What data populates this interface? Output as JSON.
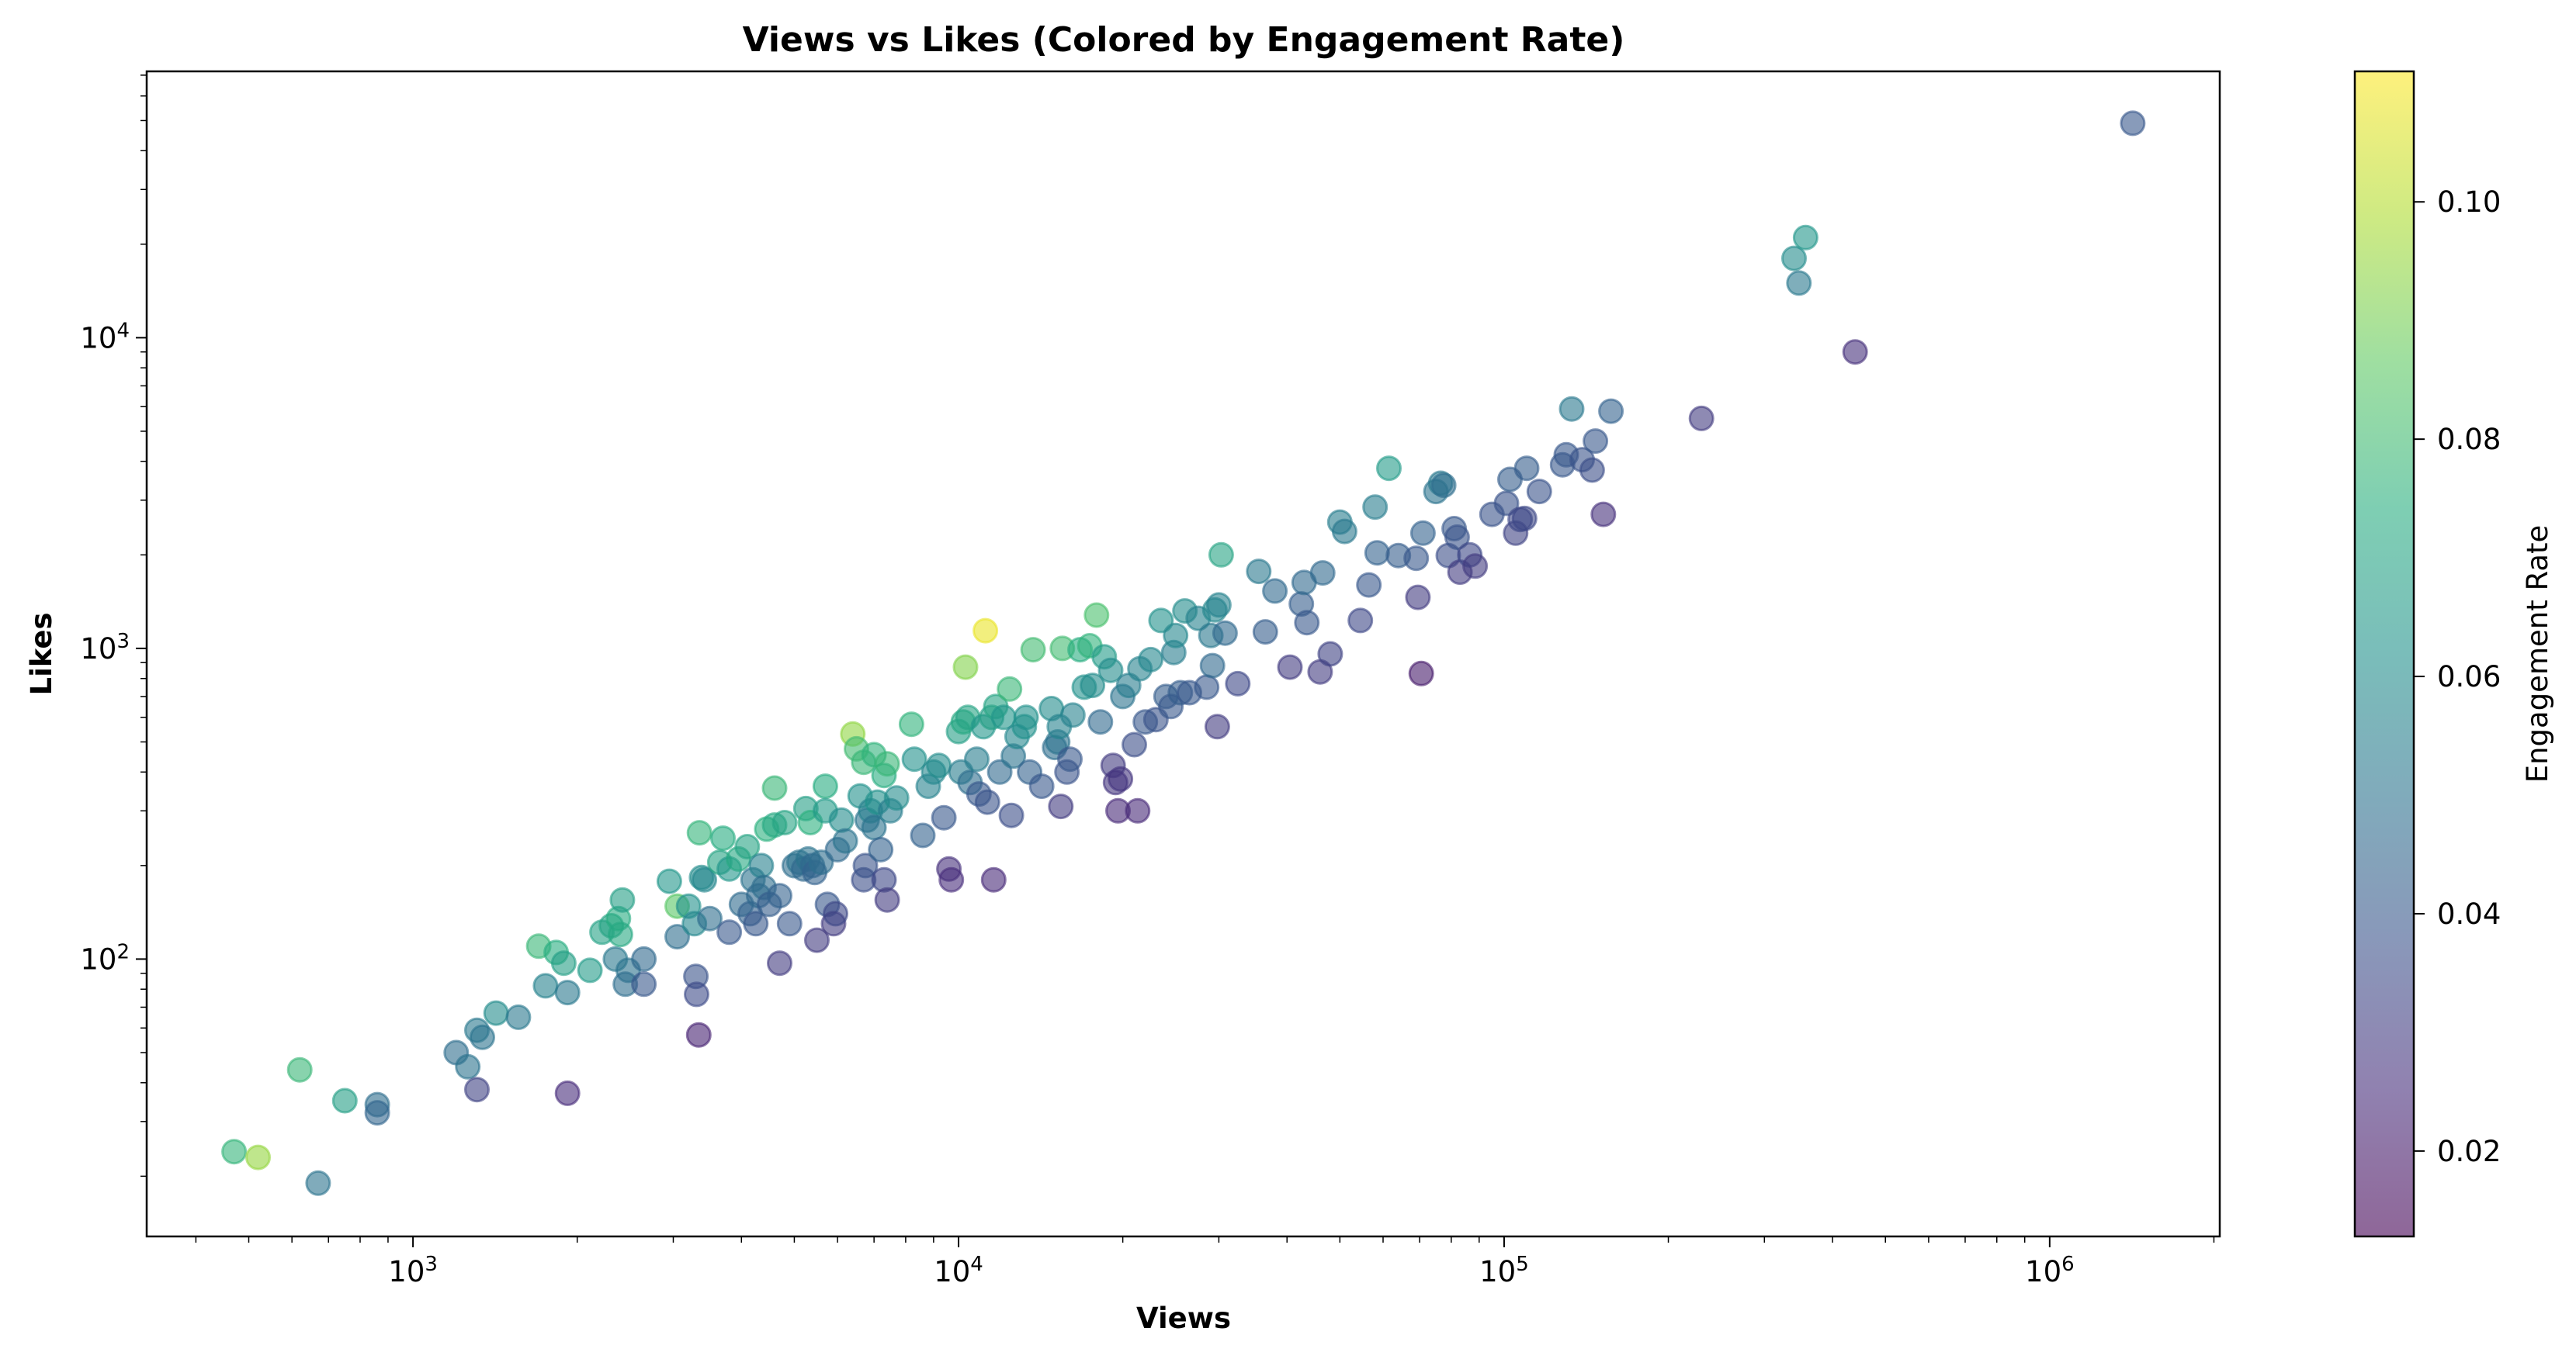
{
  "chart_data": {
    "type": "scatter",
    "title": "Views vs Likes (Colored by Engagement Rate)",
    "xlabel": "Views",
    "ylabel": "Likes",
    "xscale": "log",
    "yscale": "log",
    "xlim": [
      325,
      2050000
    ],
    "ylim": [
      12.8,
      72000
    ],
    "x_ticks": [
      {
        "value": 1000,
        "base": "10",
        "exp": "3"
      },
      {
        "value": 10000,
        "base": "10",
        "exp": "4"
      },
      {
        "value": 100000,
        "base": "10",
        "exp": "5"
      },
      {
        "value": 1000000,
        "base": "10",
        "exp": "6"
      }
    ],
    "y_ticks": [
      {
        "value": 100,
        "base": "10",
        "exp": "2"
      },
      {
        "value": 1000,
        "base": "10",
        "exp": "3"
      },
      {
        "value": 10000,
        "base": "10",
        "exp": "4"
      }
    ],
    "grid": false,
    "colorbar": {
      "label": "Engagement Rate",
      "colormap": "viridis",
      "range": [
        0.0128,
        0.111
      ],
      "ticks": [
        "0.02",
        "0.04",
        "0.06",
        "0.08",
        "0.10"
      ],
      "tick_values": [
        0.02,
        0.04,
        0.06,
        0.08,
        0.1
      ]
    },
    "marker_alpha": 0.6,
    "points": [
      {
        "x": 470,
        "y": 24,
        "c": 0.077
      },
      {
        "x": 520,
        "y": 23,
        "c": 0.095
      },
      {
        "x": 670,
        "y": 19,
        "c": 0.05
      },
      {
        "x": 620,
        "y": 44,
        "c": 0.078
      },
      {
        "x": 750,
        "y": 35,
        "c": 0.068
      },
      {
        "x": 860,
        "y": 34,
        "c": 0.048
      },
      {
        "x": 860,
        "y": 32,
        "c": 0.045
      },
      {
        "x": 1200,
        "y": 50,
        "c": 0.048
      },
      {
        "x": 1260,
        "y": 45,
        "c": 0.05
      },
      {
        "x": 1310,
        "y": 59,
        "c": 0.052
      },
      {
        "x": 1340,
        "y": 56,
        "c": 0.05
      },
      {
        "x": 1310,
        "y": 38,
        "c": 0.032
      },
      {
        "x": 1420,
        "y": 67,
        "c": 0.06
      },
      {
        "x": 1560,
        "y": 65,
        "c": 0.052
      },
      {
        "x": 1700,
        "y": 110,
        "c": 0.078
      },
      {
        "x": 1750,
        "y": 82,
        "c": 0.056
      },
      {
        "x": 1830,
        "y": 105,
        "c": 0.074
      },
      {
        "x": 1890,
        "y": 97,
        "c": 0.068
      },
      {
        "x": 1920,
        "y": 78,
        "c": 0.052
      },
      {
        "x": 1920,
        "y": 37,
        "c": 0.025
      },
      {
        "x": 2110,
        "y": 92,
        "c": 0.066
      },
      {
        "x": 2220,
        "y": 122,
        "c": 0.069
      },
      {
        "x": 2310,
        "y": 128,
        "c": 0.07
      },
      {
        "x": 2350,
        "y": 100,
        "c": 0.052
      },
      {
        "x": 2380,
        "y": 135,
        "c": 0.073
      },
      {
        "x": 2400,
        "y": 120,
        "c": 0.072
      },
      {
        "x": 2420,
        "y": 155,
        "c": 0.068
      },
      {
        "x": 2480,
        "y": 92,
        "c": 0.05
      },
      {
        "x": 2450,
        "y": 83,
        "c": 0.048
      },
      {
        "x": 2650,
        "y": 100,
        "c": 0.046
      },
      {
        "x": 2650,
        "y": 83,
        "c": 0.04
      },
      {
        "x": 2950,
        "y": 178,
        "c": 0.064
      },
      {
        "x": 3050,
        "y": 148,
        "c": 0.085
      },
      {
        "x": 3050,
        "y": 118,
        "c": 0.048
      },
      {
        "x": 3200,
        "y": 148,
        "c": 0.062
      },
      {
        "x": 3280,
        "y": 130,
        "c": 0.058
      },
      {
        "x": 3300,
        "y": 88,
        "c": 0.038
      },
      {
        "x": 3310,
        "y": 77,
        "c": 0.035
      },
      {
        "x": 3340,
        "y": 57,
        "c": 0.022
      },
      {
        "x": 3350,
        "y": 255,
        "c": 0.077
      },
      {
        "x": 3380,
        "y": 183,
        "c": 0.06
      },
      {
        "x": 3420,
        "y": 180,
        "c": 0.058
      },
      {
        "x": 3500,
        "y": 135,
        "c": 0.048
      },
      {
        "x": 3650,
        "y": 205,
        "c": 0.07
      },
      {
        "x": 3700,
        "y": 245,
        "c": 0.073
      },
      {
        "x": 3800,
        "y": 195,
        "c": 0.064
      },
      {
        "x": 3800,
        "y": 122,
        "c": 0.04
      },
      {
        "x": 3950,
        "y": 210,
        "c": 0.072
      },
      {
        "x": 4000,
        "y": 150,
        "c": 0.047
      },
      {
        "x": 4100,
        "y": 230,
        "c": 0.07
      },
      {
        "x": 4150,
        "y": 140,
        "c": 0.044
      },
      {
        "x": 4200,
        "y": 180,
        "c": 0.05
      },
      {
        "x": 4250,
        "y": 130,
        "c": 0.04
      },
      {
        "x": 4300,
        "y": 160,
        "c": 0.046
      },
      {
        "x": 4350,
        "y": 200,
        "c": 0.055
      },
      {
        "x": 4400,
        "y": 170,
        "c": 0.048
      },
      {
        "x": 4450,
        "y": 262,
        "c": 0.075
      },
      {
        "x": 4500,
        "y": 150,
        "c": 0.042
      },
      {
        "x": 4600,
        "y": 355,
        "c": 0.078
      },
      {
        "x": 4600,
        "y": 270,
        "c": 0.072
      },
      {
        "x": 4700,
        "y": 160,
        "c": 0.044
      },
      {
        "x": 4700,
        "y": 97,
        "c": 0.03
      },
      {
        "x": 4800,
        "y": 275,
        "c": 0.07
      },
      {
        "x": 4900,
        "y": 130,
        "c": 0.04
      },
      {
        "x": 5000,
        "y": 200,
        "c": 0.048
      },
      {
        "x": 5100,
        "y": 205,
        "c": 0.05
      },
      {
        "x": 5200,
        "y": 195,
        "c": 0.046
      },
      {
        "x": 5300,
        "y": 210,
        "c": 0.05
      },
      {
        "x": 5250,
        "y": 305,
        "c": 0.068
      },
      {
        "x": 5350,
        "y": 275,
        "c": 0.075
      },
      {
        "x": 5400,
        "y": 200,
        "c": 0.046
      },
      {
        "x": 5450,
        "y": 190,
        "c": 0.044
      },
      {
        "x": 5500,
        "y": 115,
        "c": 0.03
      },
      {
        "x": 5600,
        "y": 205,
        "c": 0.048
      },
      {
        "x": 5700,
        "y": 360,
        "c": 0.073
      },
      {
        "x": 5700,
        "y": 300,
        "c": 0.066
      },
      {
        "x": 5750,
        "y": 150,
        "c": 0.04
      },
      {
        "x": 5900,
        "y": 130,
        "c": 0.03
      },
      {
        "x": 5950,
        "y": 140,
        "c": 0.034
      },
      {
        "x": 6000,
        "y": 225,
        "c": 0.046
      },
      {
        "x": 6100,
        "y": 280,
        "c": 0.06
      },
      {
        "x": 6200,
        "y": 240,
        "c": 0.05
      },
      {
        "x": 6400,
        "y": 530,
        "c": 0.094
      },
      {
        "x": 6500,
        "y": 475,
        "c": 0.08
      },
      {
        "x": 6600,
        "y": 335,
        "c": 0.062
      },
      {
        "x": 6700,
        "y": 430,
        "c": 0.078
      },
      {
        "x": 6700,
        "y": 180,
        "c": 0.036
      },
      {
        "x": 6750,
        "y": 200,
        "c": 0.038
      },
      {
        "x": 6800,
        "y": 280,
        "c": 0.05
      },
      {
        "x": 6900,
        "y": 300,
        "c": 0.055
      },
      {
        "x": 7000,
        "y": 265,
        "c": 0.05
      },
      {
        "x": 7000,
        "y": 455,
        "c": 0.076
      },
      {
        "x": 7100,
        "y": 320,
        "c": 0.062
      },
      {
        "x": 7200,
        "y": 225,
        "c": 0.044
      },
      {
        "x": 7300,
        "y": 390,
        "c": 0.074
      },
      {
        "x": 7300,
        "y": 180,
        "c": 0.034
      },
      {
        "x": 7400,
        "y": 425,
        "c": 0.078
      },
      {
        "x": 7400,
        "y": 155,
        "c": 0.03
      },
      {
        "x": 7500,
        "y": 300,
        "c": 0.054
      },
      {
        "x": 7700,
        "y": 330,
        "c": 0.06
      },
      {
        "x": 8200,
        "y": 570,
        "c": 0.076
      },
      {
        "x": 8300,
        "y": 440,
        "c": 0.062
      },
      {
        "x": 8600,
        "y": 250,
        "c": 0.044
      },
      {
        "x": 8800,
        "y": 360,
        "c": 0.056
      },
      {
        "x": 9000,
        "y": 400,
        "c": 0.058
      },
      {
        "x": 9200,
        "y": 420,
        "c": 0.06
      },
      {
        "x": 9400,
        "y": 285,
        "c": 0.04
      },
      {
        "x": 9600,
        "y": 195,
        "c": 0.026
      },
      {
        "x": 9700,
        "y": 180,
        "c": 0.025
      },
      {
        "x": 10000,
        "y": 540,
        "c": 0.068
      },
      {
        "x": 10100,
        "y": 400,
        "c": 0.054
      },
      {
        "x": 10200,
        "y": 580,
        "c": 0.072
      },
      {
        "x": 10300,
        "y": 870,
        "c": 0.092
      },
      {
        "x": 10400,
        "y": 600,
        "c": 0.07
      },
      {
        "x": 10500,
        "y": 370,
        "c": 0.048
      },
      {
        "x": 10800,
        "y": 440,
        "c": 0.054
      },
      {
        "x": 10900,
        "y": 340,
        "c": 0.04
      },
      {
        "x": 11100,
        "y": 560,
        "c": 0.064
      },
      {
        "x": 11200,
        "y": 1140,
        "c": 0.108
      },
      {
        "x": 11300,
        "y": 320,
        "c": 0.038
      },
      {
        "x": 11500,
        "y": 600,
        "c": 0.068
      },
      {
        "x": 11600,
        "y": 180,
        "c": 0.024
      },
      {
        "x": 11700,
        "y": 650,
        "c": 0.07
      },
      {
        "x": 11900,
        "y": 400,
        "c": 0.046
      },
      {
        "x": 12100,
        "y": 600,
        "c": 0.064
      },
      {
        "x": 12400,
        "y": 740,
        "c": 0.078
      },
      {
        "x": 12500,
        "y": 290,
        "c": 0.036
      },
      {
        "x": 12600,
        "y": 450,
        "c": 0.05
      },
      {
        "x": 12800,
        "y": 520,
        "c": 0.058
      },
      {
        "x": 13200,
        "y": 560,
        "c": 0.062
      },
      {
        "x": 13300,
        "y": 600,
        "c": 0.062
      },
      {
        "x": 13500,
        "y": 400,
        "c": 0.044
      },
      {
        "x": 13700,
        "y": 990,
        "c": 0.08
      },
      {
        "x": 14200,
        "y": 360,
        "c": 0.04
      },
      {
        "x": 14800,
        "y": 640,
        "c": 0.06
      },
      {
        "x": 15000,
        "y": 480,
        "c": 0.048
      },
      {
        "x": 15200,
        "y": 500,
        "c": 0.05
      },
      {
        "x": 15300,
        "y": 560,
        "c": 0.056
      },
      {
        "x": 15400,
        "y": 310,
        "c": 0.03
      },
      {
        "x": 15500,
        "y": 1000,
        "c": 0.08
      },
      {
        "x": 15800,
        "y": 400,
        "c": 0.038
      },
      {
        "x": 16000,
        "y": 440,
        "c": 0.04
      },
      {
        "x": 16200,
        "y": 610,
        "c": 0.056
      },
      {
        "x": 16700,
        "y": 990,
        "c": 0.074
      },
      {
        "x": 17000,
        "y": 750,
        "c": 0.062
      },
      {
        "x": 17400,
        "y": 1020,
        "c": 0.076
      },
      {
        "x": 17600,
        "y": 760,
        "c": 0.06
      },
      {
        "x": 17900,
        "y": 1280,
        "c": 0.082
      },
      {
        "x": 18200,
        "y": 580,
        "c": 0.046
      },
      {
        "x": 18500,
        "y": 940,
        "c": 0.066
      },
      {
        "x": 19000,
        "y": 850,
        "c": 0.06
      },
      {
        "x": 19200,
        "y": 420,
        "c": 0.03
      },
      {
        "x": 19400,
        "y": 370,
        "c": 0.028
      },
      {
        "x": 19600,
        "y": 300,
        "c": 0.024
      },
      {
        "x": 19800,
        "y": 380,
        "c": 0.028
      },
      {
        "x": 20000,
        "y": 700,
        "c": 0.05
      },
      {
        "x": 20500,
        "y": 760,
        "c": 0.054
      },
      {
        "x": 21000,
        "y": 490,
        "c": 0.036
      },
      {
        "x": 21300,
        "y": 300,
        "c": 0.024
      },
      {
        "x": 21500,
        "y": 860,
        "c": 0.056
      },
      {
        "x": 22000,
        "y": 580,
        "c": 0.04
      },
      {
        "x": 22500,
        "y": 920,
        "c": 0.058
      },
      {
        "x": 23000,
        "y": 590,
        "c": 0.038
      },
      {
        "x": 23500,
        "y": 1230,
        "c": 0.062
      },
      {
        "x": 24000,
        "y": 700,
        "c": 0.042
      },
      {
        "x": 24500,
        "y": 650,
        "c": 0.04
      },
      {
        "x": 24800,
        "y": 970,
        "c": 0.054
      },
      {
        "x": 25000,
        "y": 1100,
        "c": 0.058
      },
      {
        "x": 25500,
        "y": 720,
        "c": 0.042
      },
      {
        "x": 26000,
        "y": 1320,
        "c": 0.06
      },
      {
        "x": 26500,
        "y": 720,
        "c": 0.04
      },
      {
        "x": 27500,
        "y": 1250,
        "c": 0.056
      },
      {
        "x": 28500,
        "y": 750,
        "c": 0.04
      },
      {
        "x": 29000,
        "y": 1100,
        "c": 0.052
      },
      {
        "x": 29200,
        "y": 880,
        "c": 0.046
      },
      {
        "x": 29500,
        "y": 1330,
        "c": 0.058
      },
      {
        "x": 29800,
        "y": 560,
        "c": 0.03
      },
      {
        "x": 30000,
        "y": 1380,
        "c": 0.056
      },
      {
        "x": 30300,
        "y": 2000,
        "c": 0.07
      },
      {
        "x": 30800,
        "y": 1120,
        "c": 0.046
      },
      {
        "x": 32500,
        "y": 770,
        "c": 0.034
      },
      {
        "x": 35500,
        "y": 1770,
        "c": 0.052
      },
      {
        "x": 36500,
        "y": 1130,
        "c": 0.042
      },
      {
        "x": 38000,
        "y": 1530,
        "c": 0.046
      },
      {
        "x": 40500,
        "y": 870,
        "c": 0.03
      },
      {
        "x": 42500,
        "y": 1390,
        "c": 0.042
      },
      {
        "x": 43000,
        "y": 1630,
        "c": 0.046
      },
      {
        "x": 43500,
        "y": 1210,
        "c": 0.04
      },
      {
        "x": 46000,
        "y": 840,
        "c": 0.03
      },
      {
        "x": 46500,
        "y": 1750,
        "c": 0.046
      },
      {
        "x": 48000,
        "y": 960,
        "c": 0.032
      },
      {
        "x": 50000,
        "y": 2550,
        "c": 0.054
      },
      {
        "x": 51000,
        "y": 2380,
        "c": 0.052
      },
      {
        "x": 54500,
        "y": 1230,
        "c": 0.034
      },
      {
        "x": 56500,
        "y": 1600,
        "c": 0.04
      },
      {
        "x": 58000,
        "y": 2850,
        "c": 0.054
      },
      {
        "x": 58500,
        "y": 2030,
        "c": 0.044
      },
      {
        "x": 61500,
        "y": 3800,
        "c": 0.066
      },
      {
        "x": 64000,
        "y": 1990,
        "c": 0.042
      },
      {
        "x": 69000,
        "y": 1950,
        "c": 0.04
      },
      {
        "x": 69500,
        "y": 1460,
        "c": 0.03
      },
      {
        "x": 70500,
        "y": 830,
        "c": 0.02
      },
      {
        "x": 71000,
        "y": 2350,
        "c": 0.044
      },
      {
        "x": 75000,
        "y": 3200,
        "c": 0.05
      },
      {
        "x": 76500,
        "y": 3400,
        "c": 0.052
      },
      {
        "x": 77500,
        "y": 3350,
        "c": 0.048
      },
      {
        "x": 79000,
        "y": 1990,
        "c": 0.036
      },
      {
        "x": 81000,
        "y": 2430,
        "c": 0.04
      },
      {
        "x": 82000,
        "y": 2280,
        "c": 0.038
      },
      {
        "x": 83000,
        "y": 1760,
        "c": 0.03
      },
      {
        "x": 86500,
        "y": 2000,
        "c": 0.034
      },
      {
        "x": 88500,
        "y": 1840,
        "c": 0.03
      },
      {
        "x": 95000,
        "y": 2700,
        "c": 0.038
      },
      {
        "x": 101000,
        "y": 2930,
        "c": 0.038
      },
      {
        "x": 102500,
        "y": 3500,
        "c": 0.042
      },
      {
        "x": 105000,
        "y": 2350,
        "c": 0.032
      },
      {
        "x": 107000,
        "y": 2600,
        "c": 0.034
      },
      {
        "x": 109000,
        "y": 2620,
        "c": 0.034
      },
      {
        "x": 110000,
        "y": 3800,
        "c": 0.042
      },
      {
        "x": 116000,
        "y": 3200,
        "c": 0.038
      },
      {
        "x": 128000,
        "y": 3900,
        "c": 0.04
      },
      {
        "x": 130000,
        "y": 4200,
        "c": 0.04
      },
      {
        "x": 133000,
        "y": 5900,
        "c": 0.052
      },
      {
        "x": 139000,
        "y": 4050,
        "c": 0.038
      },
      {
        "x": 145000,
        "y": 3750,
        "c": 0.036
      },
      {
        "x": 147000,
        "y": 4650,
        "c": 0.04
      },
      {
        "x": 152000,
        "y": 2700,
        "c": 0.026
      },
      {
        "x": 157000,
        "y": 5800,
        "c": 0.044
      },
      {
        "x": 230000,
        "y": 5500,
        "c": 0.03
      },
      {
        "x": 340000,
        "y": 18000,
        "c": 0.06
      },
      {
        "x": 347000,
        "y": 15000,
        "c": 0.052
      },
      {
        "x": 357000,
        "y": 21000,
        "c": 0.064
      },
      {
        "x": 440000,
        "y": 9000,
        "c": 0.026
      },
      {
        "x": 1420000,
        "y": 49000,
        "c": 0.04
      }
    ]
  }
}
